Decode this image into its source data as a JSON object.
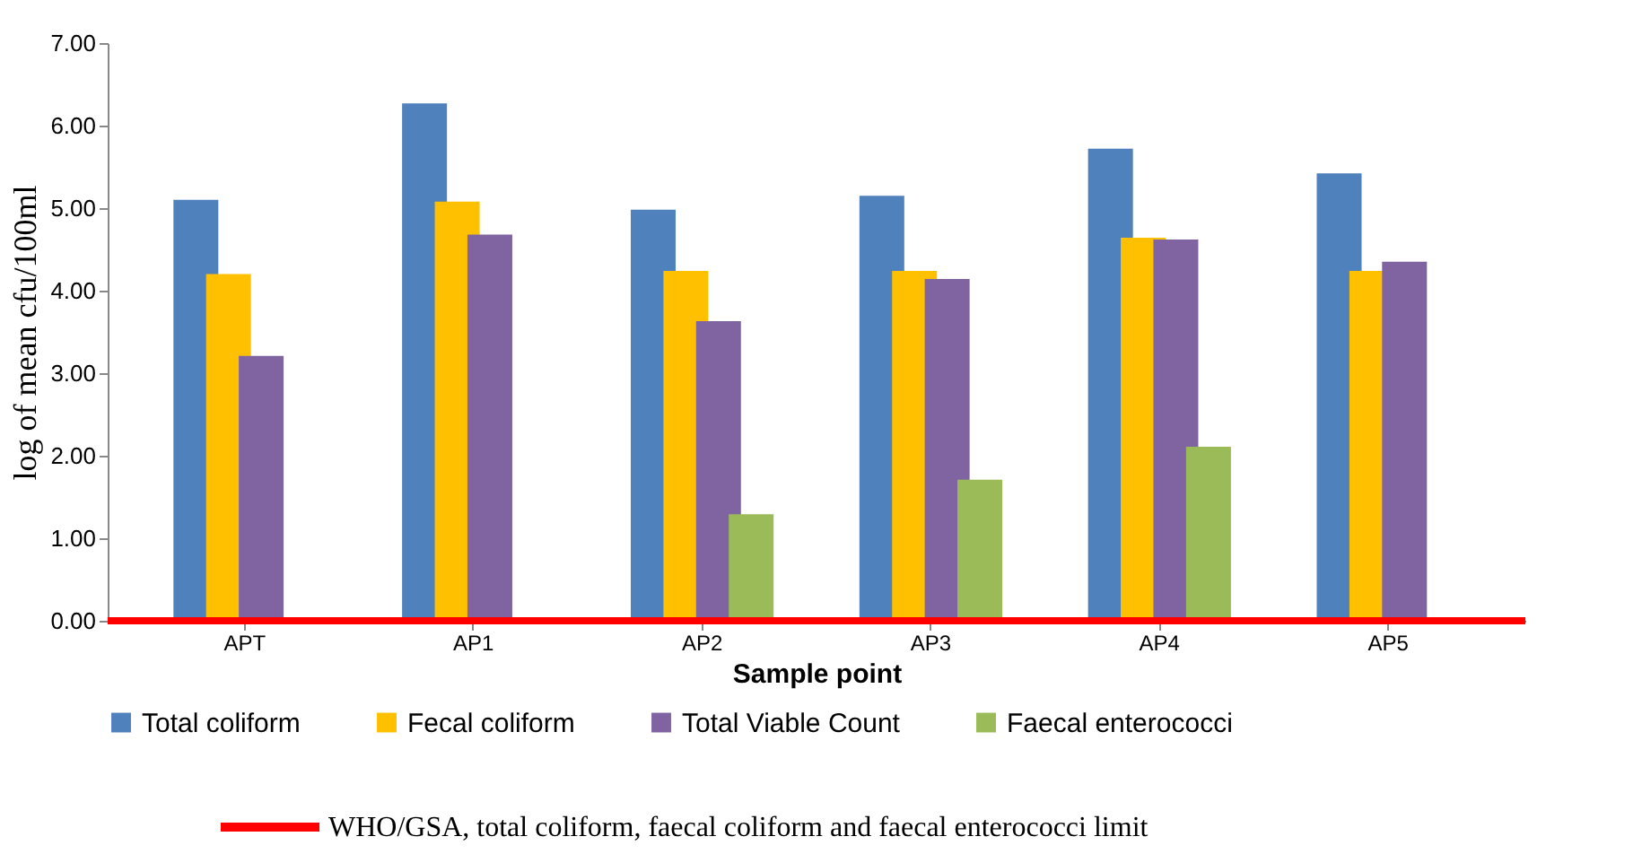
{
  "chart_data": {
    "type": "bar",
    "ylabel": "log of mean  cfu/100ml",
    "xlabel": "Sample point",
    "categories": [
      "APT",
      "AP1",
      "AP2",
      "AP3",
      "AP4",
      "AP5"
    ],
    "series": [
      {
        "name": "Total coliform",
        "color": "#4f81bd",
        "values": [
          5.1,
          6.27,
          4.98,
          5.15,
          5.72,
          5.42
        ]
      },
      {
        "name": "Fecal coliform",
        "color": "#ffc000",
        "values": [
          4.2,
          5.08,
          4.24,
          4.24,
          4.64,
          4.24
        ]
      },
      {
        "name": "Total Viable Count",
        "color": "#8064a2",
        "values": [
          3.21,
          4.68,
          3.63,
          4.14,
          4.62,
          4.35
        ]
      },
      {
        "name": "Faecal enterococci",
        "color": "#9bbb59",
        "values": [
          null,
          null,
          1.29,
          1.71,
          2.11,
          null
        ]
      }
    ],
    "ylim": [
      0,
      7
    ],
    "yticks": [
      {
        "value": 0,
        "label": "0.00"
      },
      {
        "value": 1,
        "label": "1.00"
      },
      {
        "value": 2,
        "label": "2.00"
      },
      {
        "value": 3,
        "label": "3.00"
      },
      {
        "value": 4,
        "label": "4.00"
      },
      {
        "value": 5,
        "label": "5.00"
      },
      {
        "value": 6,
        "label": "6.00"
      },
      {
        "value": 7,
        "label": "7.00"
      }
    ],
    "ref_lines": [
      {
        "axis": "y",
        "value": 0,
        "label": "WHO/GSA, total coliform, faecal coliform and faecal enterococci limit",
        "color": "#ff0000"
      }
    ],
    "grid": false,
    "legend": "bottom"
  }
}
